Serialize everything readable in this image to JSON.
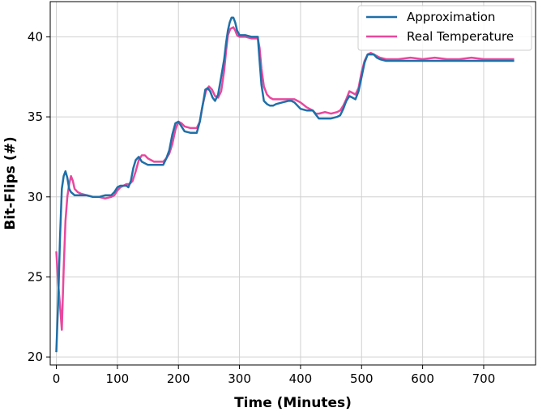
{
  "chart_data": {
    "type": "line",
    "title": "",
    "xlabel": "Time (Minutes)",
    "ylabel": "Bit-Flips (#)",
    "xlim": [
      -10,
      785
    ],
    "ylim": [
      19.5,
      42.2
    ],
    "xticks": [
      0,
      100,
      200,
      300,
      400,
      500,
      600,
      700
    ],
    "yticks": [
      20,
      25,
      30,
      35,
      40
    ],
    "grid": true,
    "legend_position": "top-right",
    "series": [
      {
        "name": "Approximation",
        "color": "#1f6fa8",
        "x": [
          0,
          3,
          6,
          9,
          12,
          15,
          18,
          21,
          24,
          27,
          30,
          35,
          40,
          50,
          60,
          70,
          80,
          90,
          95,
          100,
          105,
          110,
          115,
          118,
          122,
          126,
          130,
          135,
          140,
          150,
          160,
          175,
          180,
          185,
          190,
          195,
          200,
          205,
          210,
          220,
          230,
          235,
          238,
          241,
          244,
          248,
          252,
          256,
          260,
          265,
          270,
          275,
          278,
          281,
          284,
          287,
          290,
          293,
          296,
          300,
          310,
          320,
          330,
          333,
          336,
          340,
          345,
          350,
          355,
          360,
          370,
          380,
          385,
          390,
          400,
          410,
          420,
          430,
          440,
          450,
          460,
          465,
          470,
          475,
          480,
          485,
          490,
          495,
          500,
          505,
          510,
          515,
          520,
          525,
          530,
          540,
          550,
          600,
          650,
          700,
          750
        ],
        "y": [
          20.3,
          23.5,
          27.5,
          30.5,
          31.3,
          31.6,
          31.2,
          30.5,
          30.3,
          30.2,
          30.1,
          30.1,
          30.1,
          30.1,
          30.0,
          30.0,
          30.1,
          30.1,
          30.3,
          30.6,
          30.7,
          30.7,
          30.7,
          30.6,
          31.0,
          31.8,
          32.3,
          32.5,
          32.2,
          32.0,
          32.0,
          32.0,
          32.4,
          32.9,
          33.9,
          34.6,
          34.7,
          34.4,
          34.1,
          34.0,
          34.0,
          34.7,
          35.4,
          36.0,
          36.7,
          36.8,
          36.6,
          36.2,
          36.0,
          36.4,
          37.5,
          38.6,
          39.6,
          40.4,
          40.9,
          41.2,
          41.2,
          40.9,
          40.4,
          40.1,
          40.1,
          40.0,
          40.0,
          38.5,
          37.0,
          36.0,
          35.8,
          35.7,
          35.7,
          35.8,
          35.9,
          36.0,
          36.0,
          35.9,
          35.5,
          35.4,
          35.4,
          34.9,
          34.9,
          34.9,
          35.0,
          35.1,
          35.5,
          36.0,
          36.3,
          36.2,
          36.1,
          36.6,
          37.5,
          38.4,
          38.9,
          38.9,
          38.9,
          38.7,
          38.6,
          38.5,
          38.5,
          38.5,
          38.5,
          38.5,
          38.5
        ]
      },
      {
        "name": "Real Temperature",
        "color": "#e8489e",
        "x": [
          0,
          3,
          6,
          9,
          12,
          15,
          18,
          21,
          24,
          27,
          30,
          35,
          40,
          50,
          60,
          70,
          80,
          90,
          95,
          100,
          105,
          110,
          115,
          120,
          125,
          130,
          135,
          140,
          145,
          150,
          160,
          175,
          180,
          185,
          190,
          195,
          200,
          205,
          210,
          220,
          230,
          235,
          240,
          245,
          250,
          255,
          260,
          265,
          270,
          275,
          278,
          281,
          285,
          290,
          293,
          296,
          300,
          310,
          320,
          330,
          333,
          336,
          340,
          345,
          350,
          355,
          360,
          370,
          380,
          390,
          395,
          400,
          410,
          420,
          425,
          430,
          440,
          450,
          460,
          465,
          470,
          475,
          480,
          485,
          490,
          495,
          500,
          505,
          510,
          515,
          520,
          530,
          540,
          560,
          580,
          600,
          620,
          640,
          660,
          680,
          700,
          720,
          750
        ],
        "y": [
          26.6,
          24.6,
          23.2,
          21.7,
          25.5,
          28.5,
          30.0,
          30.8,
          31.3,
          31.0,
          30.5,
          30.3,
          30.2,
          30.1,
          30.0,
          30.0,
          29.9,
          30.0,
          30.1,
          30.4,
          30.6,
          30.7,
          30.8,
          30.8,
          31.0,
          31.6,
          32.3,
          32.6,
          32.6,
          32.4,
          32.2,
          32.2,
          32.4,
          32.7,
          33.3,
          34.2,
          34.7,
          34.6,
          34.4,
          34.3,
          34.3,
          34.7,
          35.8,
          36.6,
          36.9,
          36.7,
          36.3,
          36.2,
          36.6,
          37.9,
          39.1,
          40.1,
          40.5,
          40.6,
          40.4,
          40.1,
          40.0,
          40.0,
          39.9,
          39.9,
          39.3,
          38.0,
          36.9,
          36.4,
          36.2,
          36.1,
          36.1,
          36.1,
          36.1,
          36.1,
          36.0,
          35.9,
          35.6,
          35.4,
          35.2,
          35.2,
          35.3,
          35.2,
          35.3,
          35.4,
          35.7,
          36.1,
          36.6,
          36.5,
          36.4,
          36.8,
          37.8,
          38.5,
          38.9,
          39.0,
          38.9,
          38.7,
          38.6,
          38.6,
          38.7,
          38.6,
          38.7,
          38.6,
          38.6,
          38.7,
          38.6,
          38.6,
          38.6
        ]
      }
    ]
  }
}
